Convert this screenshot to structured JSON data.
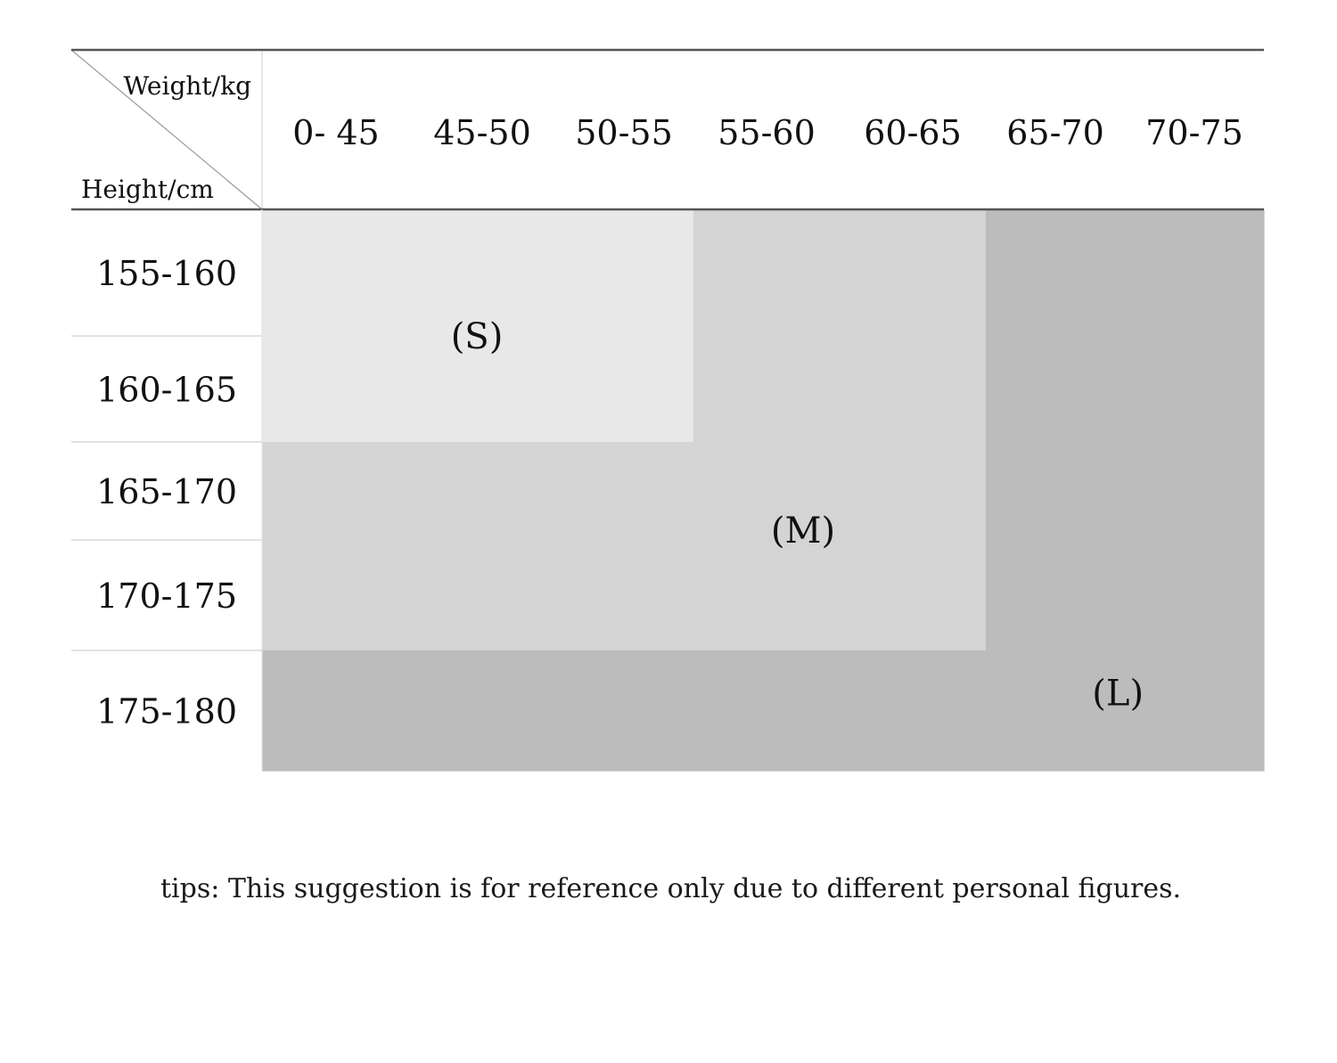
{
  "chart_data": {
    "type": "table",
    "corner": {
      "weight_label": "Weight/kg",
      "height_label": "Height/cm"
    },
    "weight_ranges": [
      "0- 45",
      "45-50",
      "50-55",
      "55-60",
      "60-65",
      "65-70",
      "70-75"
    ],
    "height_ranges": [
      "155-160",
      "160-165",
      "165-170",
      "170-175",
      "175-180"
    ],
    "sizes": [
      {
        "label": "(S)",
        "color": "#e8e8e8"
      },
      {
        "label": "(M)",
        "color": "#d4d4d4"
      },
      {
        "label": "(L)",
        "color": "#bcbcbc"
      }
    ],
    "grid": [
      [
        "(S)",
        "(S)",
        "(S)",
        "(M)",
        "(M)",
        "(L)",
        "(L)"
      ],
      [
        "(S)",
        "(S)",
        "(S)",
        "(M)",
        "(M)",
        "(L)",
        "(L)"
      ],
      [
        "(M)",
        "(M)",
        "(M)",
        "(M)",
        "(M)",
        "(L)",
        "(L)"
      ],
      [
        "(M)",
        "(M)",
        "(M)",
        "(M)",
        "(M)",
        "(L)",
        "(L)"
      ],
      [
        "(L)",
        "(L)",
        "(L)",
        "(L)",
        "(L)",
        "(L)",
        "(L)"
      ]
    ]
  },
  "tips": "tips: This suggestion is for reference only due to different personal figures."
}
